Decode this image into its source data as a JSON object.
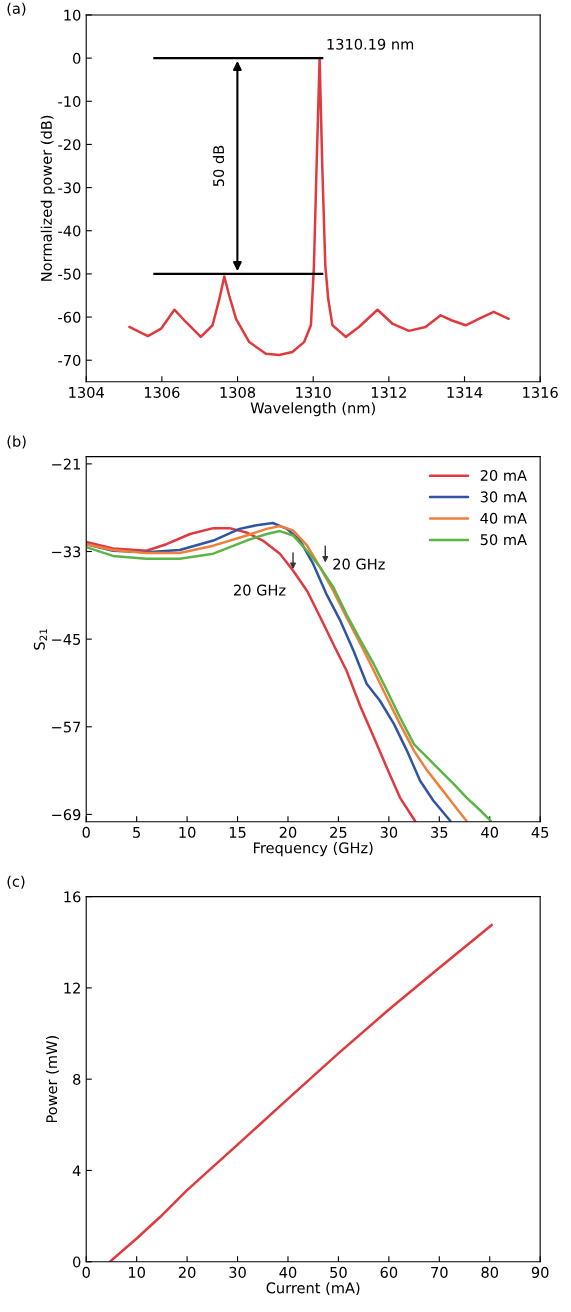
{
  "chart_data": [
    {
      "type": "line",
      "xlabel": "Wavelength (nm)",
      "ylabel": "Normalized power (dB)",
      "xlim": [
        1304,
        1316
      ],
      "ylim": [
        -75,
        10
      ],
      "xticks": [
        1304,
        1306,
        1308,
        1310,
        1312,
        1314,
        1316
      ],
      "yticks": [
        -70,
        -60,
        -50,
        -40,
        -30,
        -20,
        -10,
        0,
        10
      ],
      "grid": false,
      "legend": false,
      "annotations": [
        "(a)",
        {
          "text": "1310.19 nm",
          "x": 1310.19,
          "y": 0
        },
        "50 dB"
      ],
      "ref_lines": [
        {
          "axis": "y",
          "value": 0,
          "color": "#000000"
        },
        {
          "axis": "y",
          "value": -50,
          "color": "#000000"
        }
      ],
      "series": [
        {
          "color": "#e0393e",
          "x": [
            1305.14,
            1305.63,
            1305.98,
            1306.33,
            1306.64,
            1307.03,
            1307.34,
            1307.52,
            1307.65,
            1307.78,
            1307.96,
            1308.31,
            1308.75,
            1309.1,
            1309.45,
            1309.76,
            1309.94,
            1310.02,
            1310.09,
            1310.17,
            1310.24,
            1310.32,
            1310.4,
            1310.51,
            1310.86,
            1311.21,
            1311.7,
            1312.09,
            1312.53,
            1312.97,
            1313.37,
            1313.67,
            1314.03,
            1314.38,
            1314.77,
            1315.17
          ],
          "values": [
            -62.3,
            -64.4,
            -62.7,
            -58.3,
            -61.2,
            -64.6,
            -61.9,
            -55.8,
            -50.6,
            -55,
            -60.4,
            -65.8,
            -68.5,
            -68.8,
            -68.1,
            -65.8,
            -61.9,
            -48,
            -25,
            0,
            -25,
            -48,
            -56,
            -61.9,
            -64.6,
            -62.3,
            -58.3,
            -61.5,
            -63.2,
            -62.3,
            -59.6,
            -60.8,
            -61.9,
            -60.4,
            -58.8,
            -60.4
          ]
        }
      ]
    },
    {
      "type": "line",
      "xlabel": "Frequency (GHz)",
      "ylabel": "S$_{21}$",
      "xlim": [
        0,
        45
      ],
      "ylim": [
        -70,
        -20
      ],
      "xticks": [
        0,
        5,
        10,
        15,
        20,
        25,
        30,
        35,
        40,
        45
      ],
      "yticks": [
        {
          "value": -69,
          "label": "−69"
        },
        {
          "value": -57,
          "label": "−57"
        },
        {
          "value": -45,
          "label": "−45"
        },
        {
          "value": -33,
          "label": "−33"
        },
        {
          "value": -21,
          "label": "−21"
        }
      ],
      "grid": false,
      "legend": "top right",
      "annotations": [
        "(b)",
        {
          "text": "20 GHz",
          "x": 20.5,
          "y": -35.8
        },
        {
          "text": "20 GHz",
          "x": 23.7,
          "y": -34.9
        }
      ],
      "series": [
        {
          "name": "20 mA",
          "color": "#e0393e",
          "x": [
            0,
            2.65,
            5.96,
            7.95,
            10.3,
            12.6,
            14.2,
            15.9,
            17.5,
            19.2,
            20.5,
            21.9,
            23.2,
            24.5,
            25.8,
            27.2,
            28.5,
            29.8,
            31.1,
            32.6
          ],
          "values": [
            -31.7,
            -32.6,
            -32.9,
            -32,
            -30.6,
            -29.8,
            -29.8,
            -30.4,
            -31.5,
            -33.3,
            -35.6,
            -38.4,
            -42,
            -45.7,
            -49.3,
            -54.3,
            -58.4,
            -62.6,
            -66.7,
            -69.9
          ]
        },
        {
          "name": "30 mA",
          "color": "#2f55a4",
          "x": [
            0,
            2.65,
            5.96,
            9.27,
            12.6,
            15.2,
            16.9,
            18.5,
            19.9,
            21.2,
            22.5,
            23.8,
            25.2,
            26.5,
            27.8,
            29.1,
            30.5,
            31.8,
            33.1,
            34.4,
            36.1
          ],
          "values": [
            -32,
            -32.9,
            -33.1,
            -32.8,
            -31.5,
            -29.9,
            -29.4,
            -29.1,
            -29.9,
            -31.5,
            -34.7,
            -38.8,
            -42.5,
            -46.6,
            -51.1,
            -53.4,
            -56.6,
            -60.3,
            -64.4,
            -67.1,
            -69.9
          ]
        },
        {
          "name": "40 mA",
          "color": "#f07f3c",
          "x": [
            0,
            2.65,
            5.96,
            9.27,
            12.6,
            15.9,
            17.9,
            19.2,
            20.5,
            21.9,
            23.2,
            24.5,
            25.8,
            27.2,
            28.5,
            29.8,
            31.1,
            32.5,
            33.8,
            35.1,
            36.4,
            37.7
          ],
          "values": [
            -32,
            -32.8,
            -33.2,
            -33.2,
            -32.2,
            -30.8,
            -29.9,
            -29.5,
            -30.1,
            -32.2,
            -35.2,
            -38.4,
            -42,
            -45.7,
            -49.3,
            -53,
            -56.6,
            -60.3,
            -63,
            -65.3,
            -67.6,
            -69.9
          ]
        },
        {
          "name": "50 mA",
          "color": "#5cb447",
          "x": [
            0,
            2.65,
            5.96,
            9.27,
            12.6,
            15.9,
            17.9,
            19.2,
            20.5,
            21.9,
            23.2,
            24.5,
            25.8,
            27.2,
            28.5,
            29.8,
            31.1,
            32.5,
            33.8,
            35.1,
            36.4,
            37.7,
            39.1,
            40.1
          ],
          "values": [
            -32.4,
            -33.6,
            -34,
            -34,
            -33.3,
            -31.5,
            -30.6,
            -30.2,
            -30.8,
            -32.9,
            -35.2,
            -37.9,
            -41.6,
            -45.2,
            -48.4,
            -52,
            -55.7,
            -59.4,
            -61.2,
            -63,
            -64.8,
            -66.7,
            -68.5,
            -69.9
          ]
        }
      ]
    },
    {
      "type": "line",
      "xlabel": "Current (mA)",
      "ylabel": "Power (mW)",
      "xlim": [
        0,
        90
      ],
      "ylim": [
        0,
        16
      ],
      "xticks": [
        0,
        10,
        20,
        30,
        40,
        50,
        60,
        70,
        80,
        90
      ],
      "yticks": [
        0,
        4,
        8,
        12,
        16
      ],
      "grid": false,
      "legend": false,
      "annotations": [
        "(c)"
      ],
      "series": [
        {
          "color": "#e0393e",
          "x": [
            4.7,
            10,
            14.7,
            20,
            29.9,
            40.1,
            50,
            59.9,
            69.9,
            80.4
          ],
          "values": [
            0,
            1.02,
            1.97,
            3.14,
            5.11,
            7.16,
            9.13,
            11.03,
            12.86,
            14.76
          ]
        }
      ]
    }
  ]
}
